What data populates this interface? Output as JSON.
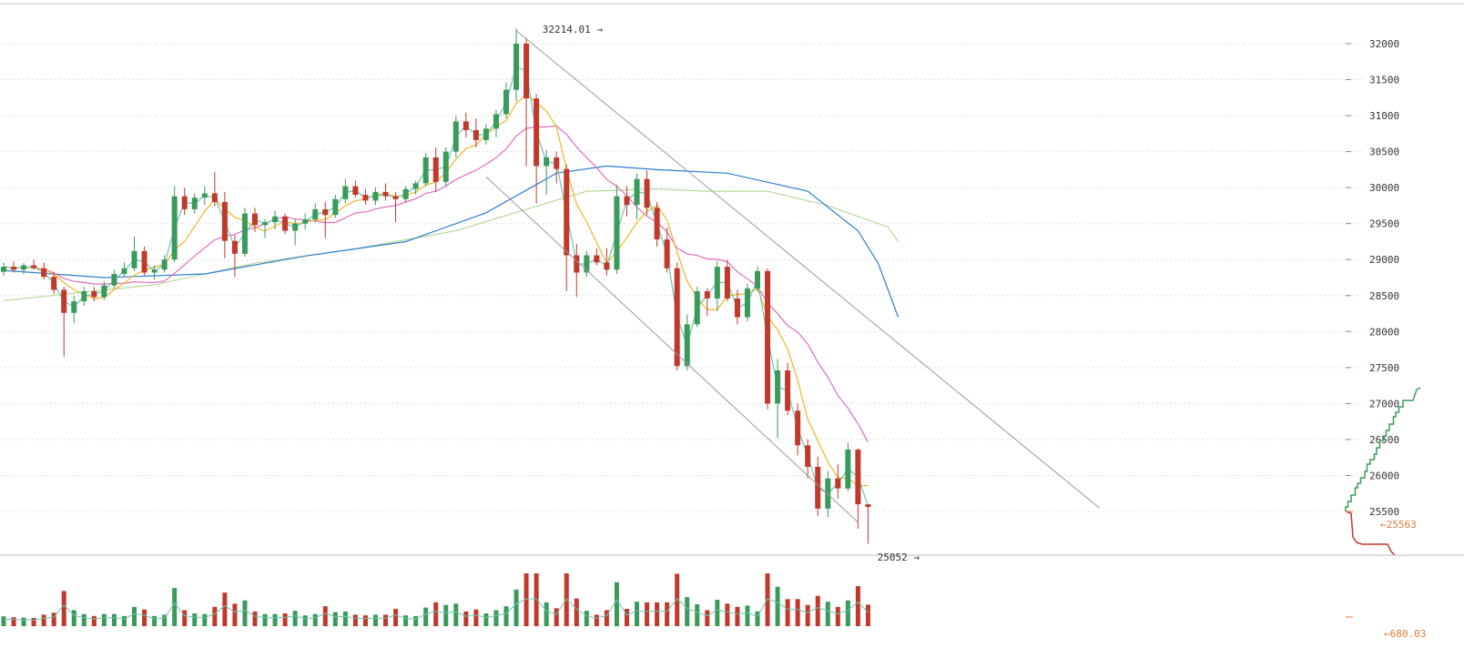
{
  "chart_data": {
    "type": "candlestick",
    "y_ticks": [
      "32000",
      "31500",
      "31000",
      "30500",
      "30000",
      "29500",
      "29000",
      "28500",
      "28000",
      "27500",
      "27000",
      "26500",
      "26000",
      "25500"
    ],
    "ylim": [
      24900,
      32500
    ],
    "grid": true,
    "colors": {
      "up": "#3a9a5c",
      "down": "#c0392b",
      "ma_short": "#6cc5b0",
      "ma_mid": "#f0b429",
      "ma_long": "#e06cc0",
      "ma_blue": "#2f7fd0",
      "ma_olive": "#b6d89a",
      "channel": "#9a9a9a",
      "grid": "#dddddd",
      "depth_bid": "#3a9a5c",
      "depth_ask": "#c0392b",
      "price_marker": "#e07a3a"
    },
    "annotations": {
      "high_label": "32214.01 →",
      "low_label": "25052 →",
      "last_price_label": "←25563",
      "volume_label": "←680.03"
    },
    "high": 32214.01,
    "low": 25052,
    "last_price": 25563,
    "volume_marker": 680.03,
    "candles_ohlc": [
      [
        28830,
        28960,
        28770,
        28900
      ],
      [
        28900,
        28980,
        28820,
        28860
      ],
      [
        28860,
        28950,
        28800,
        28920
      ],
      [
        28920,
        29000,
        28860,
        28880
      ],
      [
        28880,
        28960,
        28720,
        28760
      ],
      [
        28760,
        28820,
        28520,
        28580
      ],
      [
        28580,
        28620,
        27650,
        28260
      ],
      [
        28260,
        28500,
        28120,
        28420
      ],
      [
        28420,
        28620,
        28360,
        28560
      ],
      [
        28560,
        28620,
        28420,
        28480
      ],
      [
        28480,
        28700,
        28440,
        28640
      ],
      [
        28640,
        28860,
        28600,
        28800
      ],
      [
        28800,
        28960,
        28760,
        28880
      ],
      [
        28880,
        29320,
        28840,
        29120
      ],
      [
        29120,
        29180,
        28780,
        28820
      ],
      [
        28820,
        28920,
        28720,
        28860
      ],
      [
        28860,
        29060,
        28820,
        29000
      ],
      [
        29000,
        30020,
        28960,
        29880
      ],
      [
        29880,
        30000,
        29620,
        29700
      ],
      [
        29700,
        29920,
        29640,
        29860
      ],
      [
        29860,
        30020,
        29760,
        29920
      ],
      [
        29920,
        30220,
        29740,
        29800
      ],
      [
        29800,
        29940,
        29020,
        29260
      ],
      [
        29260,
        29340,
        28760,
        29080
      ],
      [
        29080,
        29720,
        29040,
        29640
      ],
      [
        29640,
        29720,
        29380,
        29480
      ],
      [
        29480,
        29560,
        29300,
        29520
      ],
      [
        29520,
        29680,
        29420,
        29600
      ],
      [
        29600,
        29640,
        29360,
        29400
      ],
      [
        29400,
        29560,
        29200,
        29500
      ],
      [
        29500,
        29640,
        29420,
        29560
      ],
      [
        29560,
        29780,
        29520,
        29700
      ],
      [
        29700,
        29800,
        29300,
        29620
      ],
      [
        29620,
        29900,
        29580,
        29840
      ],
      [
        29840,
        30120,
        29780,
        30020
      ],
      [
        30020,
        30100,
        29860,
        29900
      ],
      [
        29900,
        29980,
        29760,
        29820
      ],
      [
        29820,
        30000,
        29760,
        29940
      ],
      [
        29940,
        30060,
        29820,
        29880
      ],
      [
        29880,
        29940,
        29520,
        29840
      ],
      [
        29840,
        30020,
        29800,
        29980
      ],
      [
        29980,
        30100,
        29900,
        30060
      ],
      [
        30060,
        30480,
        30020,
        30420
      ],
      [
        30420,
        30560,
        29940,
        30080
      ],
      [
        30080,
        30560,
        30020,
        30500
      ],
      [
        30500,
        31000,
        30420,
        30920
      ],
      [
        30920,
        31040,
        30700,
        30800
      ],
      [
        30800,
        30960,
        30560,
        30660
      ],
      [
        30660,
        30880,
        30600,
        30820
      ],
      [
        30820,
        31080,
        30700,
        31020
      ],
      [
        31020,
        31460,
        30960,
        31360
      ],
      [
        31360,
        32214,
        31200,
        32000
      ],
      [
        32000,
        32080,
        30300,
        31240
      ],
      [
        31240,
        31300,
        29780,
        30300
      ],
      [
        30300,
        30520,
        29900,
        30420
      ],
      [
        30420,
        30500,
        30060,
        30260
      ],
      [
        30260,
        30320,
        28560,
        29060
      ],
      [
        29060,
        29220,
        28480,
        28820
      ],
      [
        28820,
        29120,
        28760,
        29060
      ],
      [
        29060,
        29160,
        28920,
        28960
      ],
      [
        28960,
        29160,
        28780,
        28860
      ],
      [
        28860,
        30040,
        28800,
        29880
      ],
      [
        29880,
        30020,
        29600,
        29760
      ],
      [
        29760,
        30200,
        29560,
        30120
      ],
      [
        30120,
        30240,
        29620,
        29720
      ],
      [
        29720,
        29800,
        29180,
        29280
      ],
      [
        29280,
        29440,
        28820,
        28880
      ],
      [
        28880,
        28960,
        27460,
        27520
      ],
      [
        27520,
        28240,
        27460,
        28100
      ],
      [
        28100,
        28620,
        28060,
        28560
      ],
      [
        28560,
        28600,
        28220,
        28460
      ],
      [
        28460,
        28980,
        28280,
        28900
      ],
      [
        28900,
        29000,
        28420,
        28460
      ],
      [
        28460,
        28580,
        28100,
        28200
      ],
      [
        28200,
        28660,
        28140,
        28600
      ],
      [
        28600,
        28900,
        28560,
        28840
      ],
      [
        28840,
        28880,
        26920,
        27000
      ],
      [
        27000,
        27620,
        26520,
        27460
      ],
      [
        27460,
        27560,
        26840,
        26900
      ],
      [
        26900,
        27000,
        26280,
        26420
      ],
      [
        26420,
        26500,
        25960,
        26120
      ],
      [
        26120,
        26260,
        25440,
        25540
      ],
      [
        25540,
        26060,
        25420,
        25960
      ],
      [
        25960,
        26160,
        25680,
        25820
      ],
      [
        25820,
        26460,
        25780,
        26360
      ],
      [
        26360,
        26380,
        25260,
        25600
      ],
      [
        25600,
        25600,
        25052,
        25563
      ]
    ],
    "moving_averages": {
      "ma_blue": [
        [
          0,
          28850
        ],
        [
          10,
          28750
        ],
        [
          20,
          28800
        ],
        [
          30,
          29050
        ],
        [
          40,
          29250
        ],
        [
          48,
          29650
        ],
        [
          55,
          30200
        ],
        [
          60,
          30300
        ],
        [
          65,
          30250
        ],
        [
          72,
          30200
        ],
        [
          80,
          29950
        ],
        [
          85,
          29400
        ],
        [
          87,
          28950
        ],
        [
          89,
          28200
        ]
      ],
      "ma_olive": [
        [
          0,
          28430
        ],
        [
          15,
          28650
        ],
        [
          25,
          28950
        ],
        [
          35,
          29150
        ],
        [
          45,
          29400
        ],
        [
          52,
          29700
        ],
        [
          58,
          29950
        ],
        [
          65,
          29980
        ],
        [
          70,
          29950
        ],
        [
          76,
          29950
        ],
        [
          82,
          29750
        ],
        [
          88,
          29450
        ],
        [
          89,
          29250
        ]
      ]
    },
    "channel_lines": [
      {
        "start": [
          51,
          32180
        ],
        "end": [
          109,
          25550
        ]
      },
      {
        "start": [
          48,
          30150
        ],
        "end": [
          85,
          25350
        ]
      }
    ],
    "volume_panel": {
      "marker": "←680.03"
    }
  }
}
